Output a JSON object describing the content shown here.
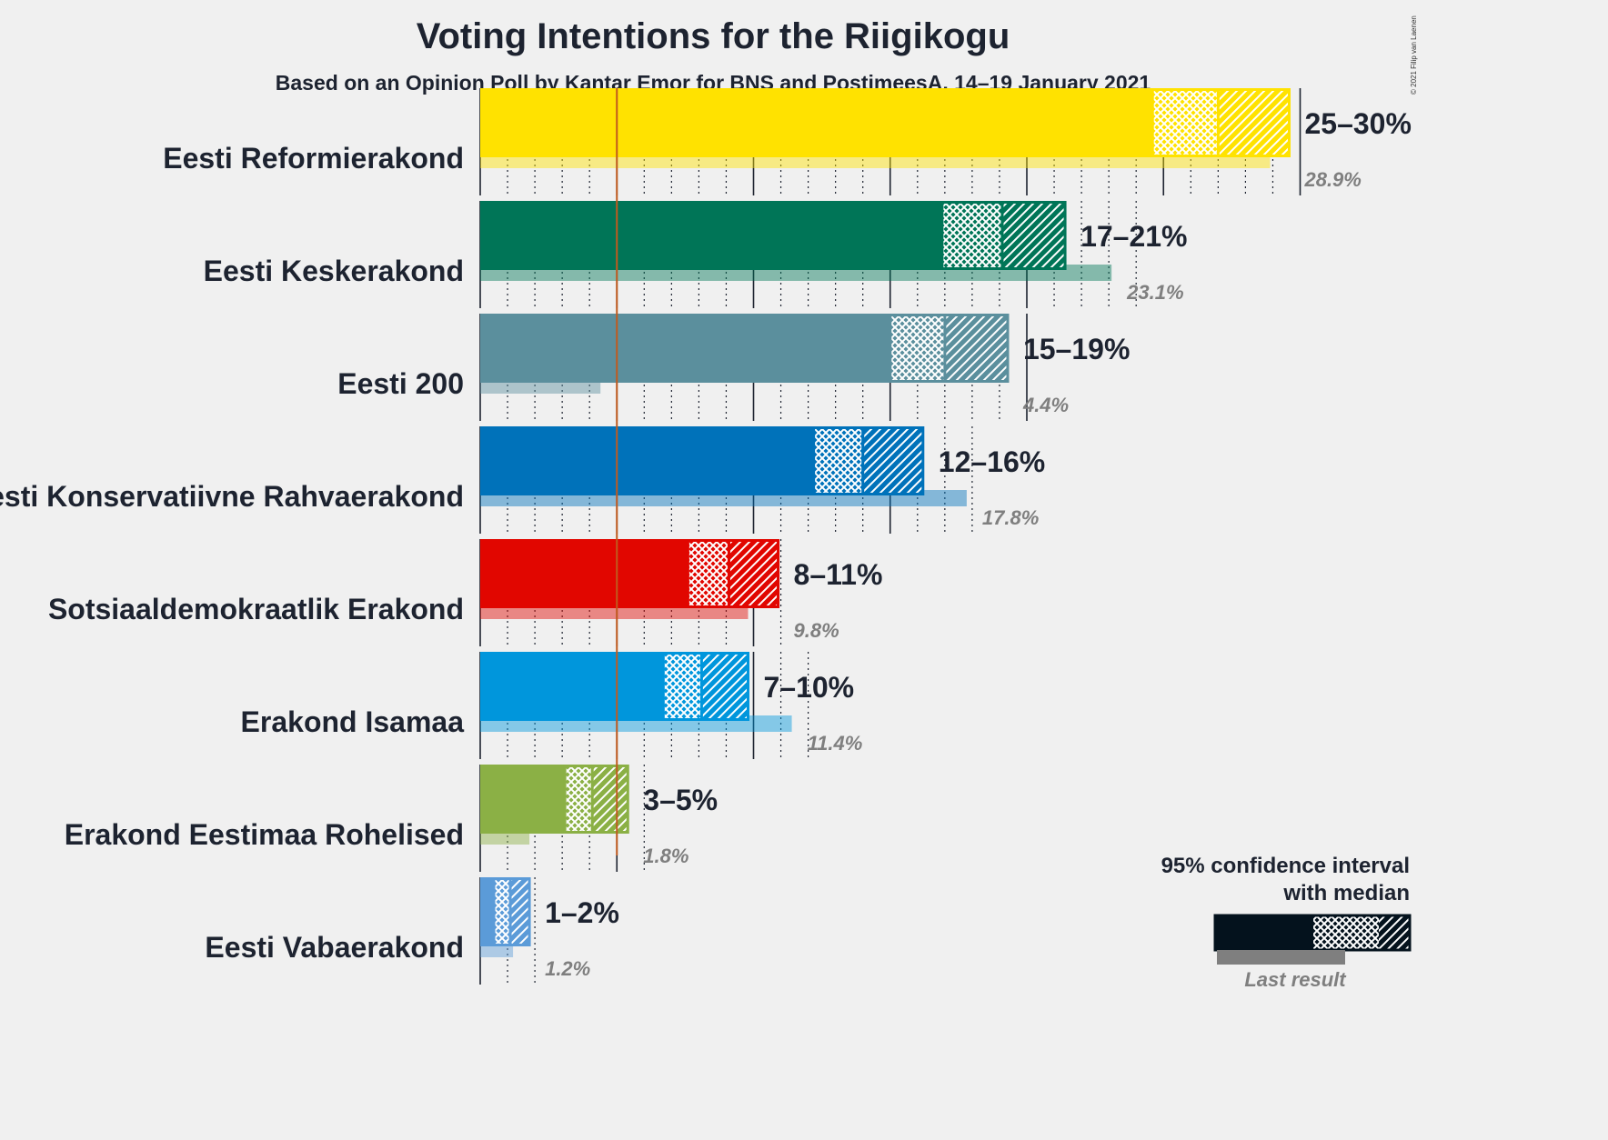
{
  "title": "Voting Intentions for the Riigikogu",
  "subtitle": "Based on an Opinion Poll by Kantar Emor for BNS and PostimeesA, 14–19 January 2021",
  "copyright": "© 2021 Filip van Laenen",
  "legend": {
    "line1": "95% confidence interval",
    "line2": "with median",
    "last_result": "Last result"
  },
  "chart_data": {
    "type": "bar",
    "orientation": "horizontal",
    "title": "Voting Intentions for the Riigikogu",
    "subtitle": "Based on an Opinion Poll by Kantar Emor for BNS and PostimeesA, 14–19 January 2021",
    "xlim": [
      0,
      30
    ],
    "threshold": 5,
    "grid": true,
    "legend_position": "bottom-right",
    "parties": [
      {
        "name": "Eesti Reformierakond",
        "color": "#ffe200",
        "lo": 24.6,
        "median": 27.0,
        "hi": 29.6,
        "range_label": "25–30%",
        "last": 28.9,
        "last_label": "28.9%"
      },
      {
        "name": "Eesti Keskerakond",
        "color": "#007557",
        "lo": 16.9,
        "median": 19.1,
        "hi": 21.4,
        "range_label": "17–21%",
        "last": 23.1,
        "last_label": "23.1%"
      },
      {
        "name": "Eesti 200",
        "color": "#5b8f9d",
        "lo": 15.0,
        "median": 17.0,
        "hi": 19.3,
        "range_label": "15–19%",
        "last": 4.4,
        "last_label": "4.4%"
      },
      {
        "name": "Eesti Konservatiivne Rahvaerakond",
        "color": "#0072ba",
        "lo": 12.2,
        "median": 14.0,
        "hi": 16.2,
        "range_label": "12–16%",
        "last": 17.8,
        "last_label": "17.8%"
      },
      {
        "name": "Sotsiaaldemokraatlik Erakond",
        "color": "#e10600",
        "lo": 7.6,
        "median": 9.1,
        "hi": 10.9,
        "range_label": "8–11%",
        "last": 9.8,
        "last_label": "9.8%"
      },
      {
        "name": "Erakond Isamaa",
        "color": "#0096dc",
        "lo": 6.7,
        "median": 8.1,
        "hi": 9.8,
        "range_label": "7–10%",
        "last": 11.4,
        "last_label": "11.4%"
      },
      {
        "name": "Erakond Eestimaa Rohelised",
        "color": "#8bb045",
        "lo": 3.1,
        "median": 4.1,
        "hi": 5.4,
        "range_label": "3–5%",
        "last": 1.8,
        "last_label": "1.8%"
      },
      {
        "name": "Eesti Vabaerakond",
        "color": "#5b9bd8",
        "lo": 0.5,
        "median": 1.1,
        "hi": 1.8,
        "range_label": "1–2%",
        "last": 1.2,
        "last_label": "1.2%"
      }
    ]
  }
}
